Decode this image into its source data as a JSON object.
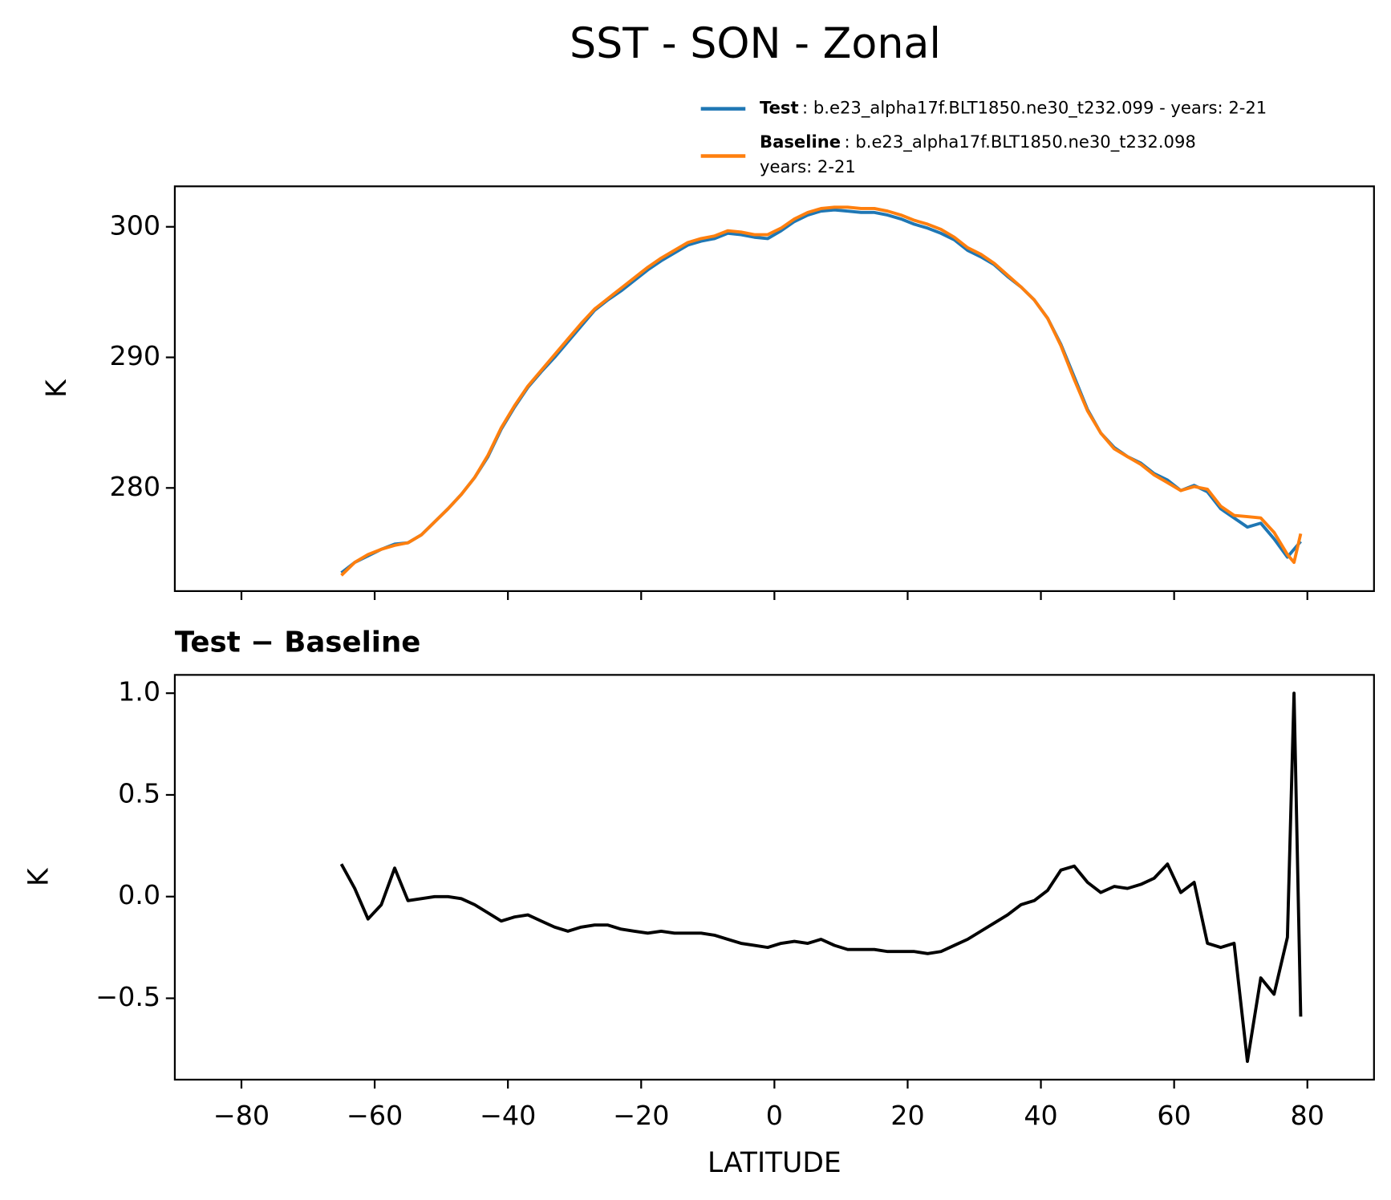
{
  "chart_data": [
    {
      "type": "line",
      "title": "SST - SON - Zonal",
      "ylabel": "K",
      "x": [
        -65,
        -63,
        -61,
        -59,
        -57,
        -55,
        -53,
        -51,
        -49,
        -47,
        -45,
        -43,
        -41,
        -39,
        -37,
        -35,
        -33,
        -31,
        -29,
        -27,
        -25,
        -23,
        -21,
        -19,
        -17,
        -15,
        -13,
        -11,
        -9,
        -7,
        -5,
        -3,
        -1,
        1,
        3,
        5,
        7,
        9,
        11,
        13,
        15,
        17,
        19,
        21,
        23,
        25,
        27,
        29,
        31,
        33,
        35,
        37,
        39,
        41,
        43,
        45,
        47,
        49,
        51,
        53,
        55,
        57,
        59,
        61,
        63,
        65,
        67,
        69,
        71,
        73,
        75,
        77,
        78,
        79
      ],
      "series": [
        {
          "name": "Test",
          "color": "#1f77b4",
          "label_lines": [
            ": b.e23_alpha17f.BLT1850.ne30_t232.099 - years: 2-21"
          ],
          "values": [
            273.5,
            274.3,
            274.8,
            275.3,
            275.7,
            275.8,
            276.4,
            277.4,
            278.4,
            279.5,
            280.8,
            282.4,
            284.5,
            286.2,
            287.7,
            288.9,
            290.0,
            291.2,
            292.4,
            293.6,
            294.4,
            295.1,
            295.9,
            296.7,
            297.4,
            298.0,
            298.6,
            298.9,
            299.1,
            299.5,
            299.4,
            299.2,
            299.1,
            299.7,
            300.4,
            300.9,
            301.2,
            301.3,
            301.2,
            301.1,
            301.1,
            300.9,
            300.6,
            300.2,
            299.9,
            299.5,
            299.0,
            298.2,
            297.7,
            297.1,
            296.2,
            295.4,
            294.4,
            293.0,
            291.0,
            288.5,
            286.0,
            284.2,
            283.1,
            282.4,
            281.9,
            281.1,
            280.6,
            279.8,
            280.2,
            279.7,
            278.4,
            277.7,
            277.0,
            277.3,
            276.1,
            274.7,
            275.3,
            275.9
          ]
        },
        {
          "name": "Baseline",
          "color": "#ff7f0e",
          "label_lines": [
            ": b.e23_alpha17f.BLT1850.ne30_t232.098",
            "years: 2-21"
          ],
          "values": [
            273.3,
            274.3,
            274.9,
            275.3,
            275.6,
            275.8,
            276.4,
            277.4,
            278.4,
            279.5,
            280.8,
            282.5,
            284.6,
            286.3,
            287.8,
            289.0,
            290.2,
            291.4,
            292.6,
            293.7,
            294.5,
            295.3,
            296.1,
            296.9,
            297.6,
            298.2,
            298.8,
            299.1,
            299.3,
            299.7,
            299.6,
            299.4,
            299.4,
            299.9,
            300.6,
            301.1,
            301.4,
            301.5,
            301.5,
            301.4,
            301.4,
            301.2,
            300.9,
            300.5,
            300.2,
            299.8,
            299.2,
            298.4,
            297.9,
            297.2,
            296.3,
            295.4,
            294.4,
            293.0,
            290.9,
            288.3,
            285.9,
            284.2,
            283.0,
            282.4,
            281.8,
            281.0,
            280.4,
            279.8,
            280.1,
            279.9,
            278.6,
            277.9,
            277.8,
            277.7,
            276.6,
            274.9,
            274.3,
            276.5
          ]
        }
      ],
      "xlim": [
        -90,
        90
      ],
      "xticks": [
        {
          "value": -80,
          "label": "−80"
        },
        {
          "value": -60,
          "label": "−60"
        },
        {
          "value": -40,
          "label": "−40"
        },
        {
          "value": -20,
          "label": "−20"
        },
        0,
        20,
        40,
        60,
        80
      ],
      "show_xtick_labels": false,
      "ylim": [
        272.1,
        303.1
      ],
      "yticks": [
        280,
        290,
        300
      ],
      "legend": "upper right"
    },
    {
      "type": "line",
      "title": "Test − Baseline",
      "ylabel": "K",
      "xlabel": "LATITUDE",
      "x": [
        -65,
        -63,
        -61,
        -59,
        -57,
        -55,
        -53,
        -51,
        -49,
        -47,
        -45,
        -43,
        -41,
        -39,
        -37,
        -35,
        -33,
        -31,
        -29,
        -27,
        -25,
        -23,
        -21,
        -19,
        -17,
        -15,
        -13,
        -11,
        -9,
        -7,
        -5,
        -3,
        -1,
        1,
        3,
        5,
        7,
        9,
        11,
        13,
        15,
        17,
        19,
        21,
        23,
        25,
        27,
        29,
        31,
        33,
        35,
        37,
        39,
        41,
        43,
        45,
        47,
        49,
        51,
        53,
        55,
        57,
        59,
        61,
        63,
        65,
        67,
        69,
        71,
        73,
        75,
        77,
        78,
        79
      ],
      "series": [
        {
          "color": "#000000",
          "values": [
            0.16,
            0.04,
            -0.11,
            -0.04,
            0.14,
            -0.02,
            -0.01,
            0.0,
            0.0,
            -0.01,
            -0.04,
            -0.08,
            -0.12,
            -0.1,
            -0.09,
            -0.12,
            -0.15,
            -0.17,
            -0.15,
            -0.14,
            -0.14,
            -0.16,
            -0.17,
            -0.18,
            -0.17,
            -0.18,
            -0.18,
            -0.18,
            -0.19,
            -0.21,
            -0.23,
            -0.24,
            -0.25,
            -0.23,
            -0.22,
            -0.23,
            -0.21,
            -0.24,
            -0.26,
            -0.26,
            -0.26,
            -0.27,
            -0.27,
            -0.27,
            -0.28,
            -0.27,
            -0.24,
            -0.21,
            -0.17,
            -0.13,
            -0.09,
            -0.04,
            -0.02,
            0.03,
            0.13,
            0.15,
            0.07,
            0.02,
            0.05,
            0.04,
            0.06,
            0.09,
            0.16,
            0.02,
            0.07,
            -0.23,
            -0.25,
            -0.23,
            -0.81,
            -0.4,
            -0.48,
            -0.2,
            1.0,
            -0.59
          ]
        }
      ],
      "xlim": [
        -90,
        90
      ],
      "xticks": [
        {
          "value": -80,
          "label": "−80"
        },
        {
          "value": -60,
          "label": "−60"
        },
        {
          "value": -40,
          "label": "−40"
        },
        {
          "value": -20,
          "label": "−20"
        },
        0,
        20,
        40,
        60,
        80
      ],
      "show_xtick_labels": true,
      "ylim": [
        -0.9,
        1.09
      ],
      "yticks": [
        {
          "value": -0.5,
          "label": "−0.5"
        },
        {
          "value": 0,
          "label": "0.0"
        },
        0.5,
        {
          "value": 1,
          "label": "1.0"
        }
      ]
    }
  ]
}
